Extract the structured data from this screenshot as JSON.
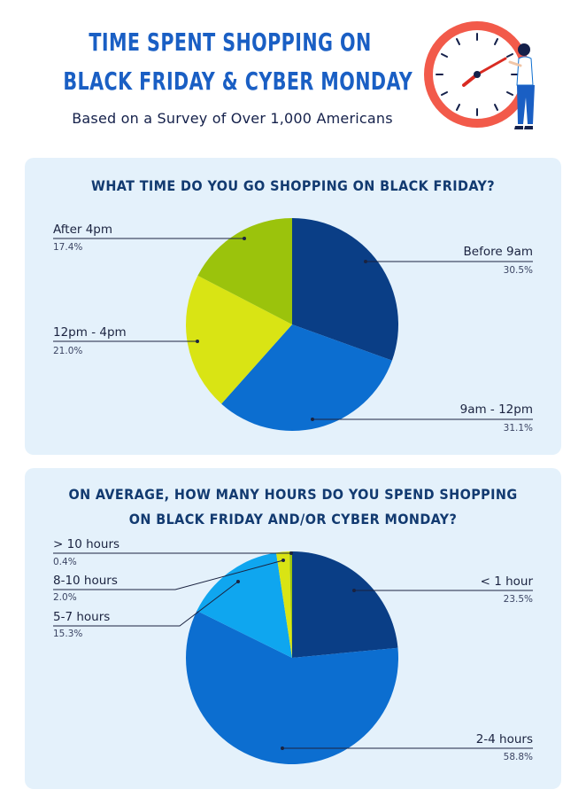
{
  "header": {
    "title_line1": "TIME SPENT SHOPPING ON",
    "title_line2": "BLACK FRIDAY & CYBER MONDAY",
    "subtitle": "Based on a Survey of Over 1,000 Americans"
  },
  "colors": {
    "title": "#1a5fc4",
    "panel": "#e4f1fb",
    "clock_red": "#f25a4a"
  },
  "chart_data": [
    {
      "type": "pie",
      "title": "WHAT TIME DO YOU GO SHOPPING ON BLACK FRIDAY?",
      "categories": [
        "Before 9am",
        "9am - 12pm",
        "12pm - 4pm",
        "After 4pm"
      ],
      "values": [
        30.5,
        31.1,
        21.0,
        17.4
      ],
      "value_labels": [
        "30.5%",
        "31.1%",
        "21.0%",
        "17.4%"
      ],
      "colors": [
        "#0a3e86",
        "#0c6ed0",
        "#d9e414",
        "#9bc30c"
      ]
    },
    {
      "type": "pie",
      "title_line1": "ON AVERAGE, HOW MANY HOURS DO YOU SPEND SHOPPING",
      "title_line2": "ON BLACK FRIDAY AND/OR CYBER MONDAY?",
      "categories": [
        "< 1 hour",
        "2-4 hours",
        "5-7 hours",
        "8-10 hours",
        "> 10 hours"
      ],
      "values": [
        23.5,
        58.8,
        15.3,
        2.0,
        0.4
      ],
      "value_labels": [
        "23.5%",
        "58.8%",
        "15.3%",
        "2.0%",
        "0.4%"
      ],
      "colors": [
        "#0a3e86",
        "#0c6ed0",
        "#0fa6ef",
        "#d9e414",
        "#9bc30c"
      ]
    }
  ]
}
